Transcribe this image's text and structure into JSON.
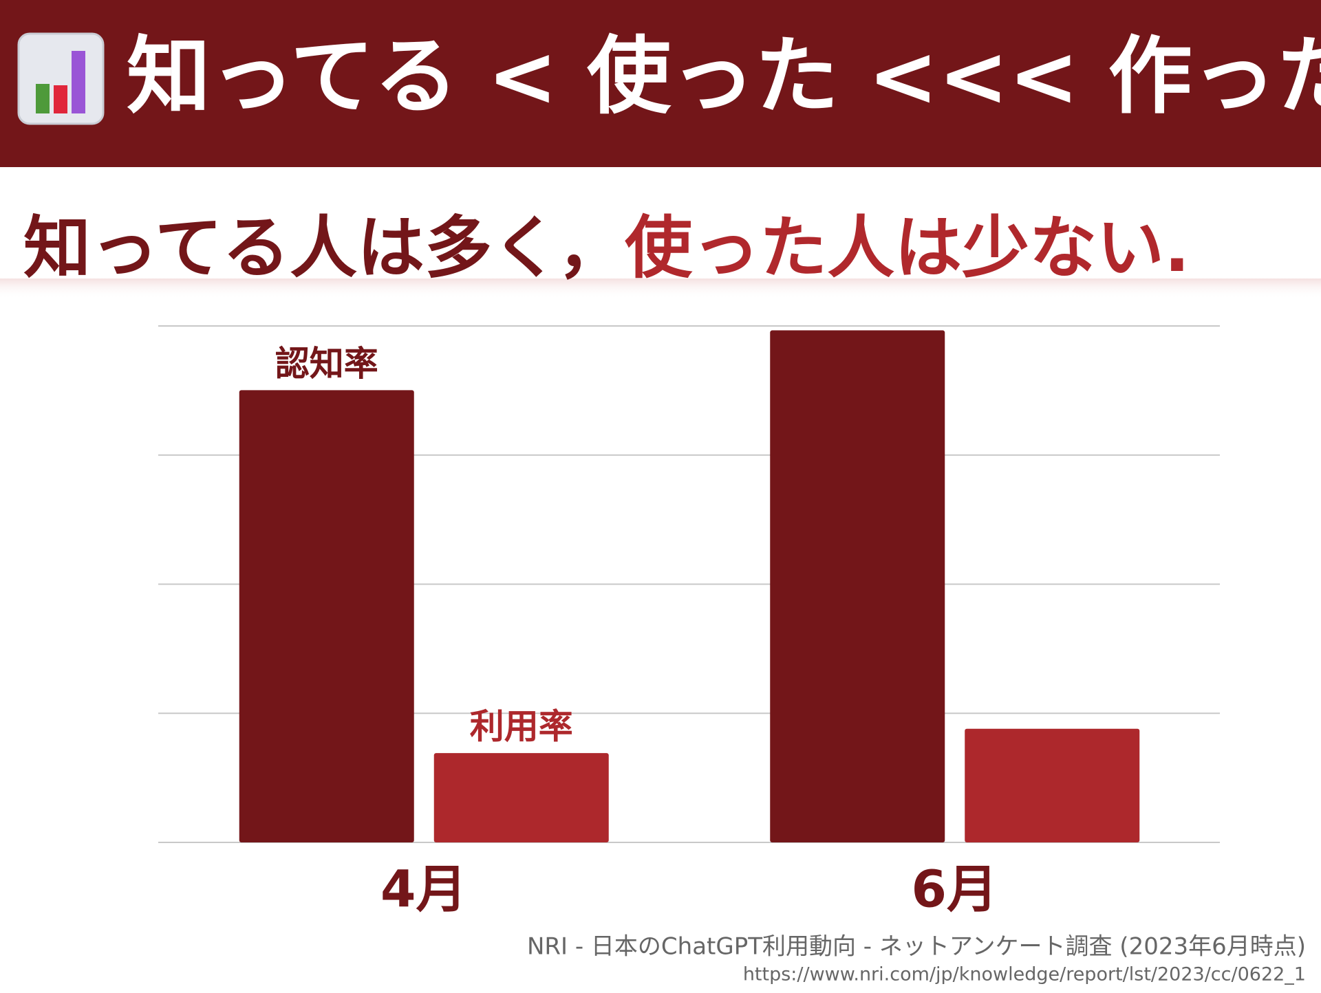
{
  "header": {
    "title": "知ってる < 使った <<< 作った"
  },
  "subtitle": {
    "part1": "知ってる人は多く，",
    "part2": "使った人は少ない."
  },
  "chart_data": {
    "type": "bar",
    "categories": [
      "4月",
      "6月"
    ],
    "series": [
      {
        "name": "認知率",
        "color": "#731619",
        "values": [
          61.3,
          69.4
        ]
      },
      {
        "name": "利用率",
        "color": "#ad282c",
        "values": [
          12.1,
          15.4
        ]
      }
    ],
    "ylim": [
      0,
      70
    ],
    "yticks": [
      0,
      17.5,
      35,
      52.5,
      70
    ],
    "grid": true
  },
  "source": {
    "line1": "NRI - 日本のChatGPT利用動向 - ネットアンケート調査 (2023年6月時点)",
    "line2": "https://www.nri.com/jp/knowledge/report/lst/2023/cc/0622_1"
  }
}
